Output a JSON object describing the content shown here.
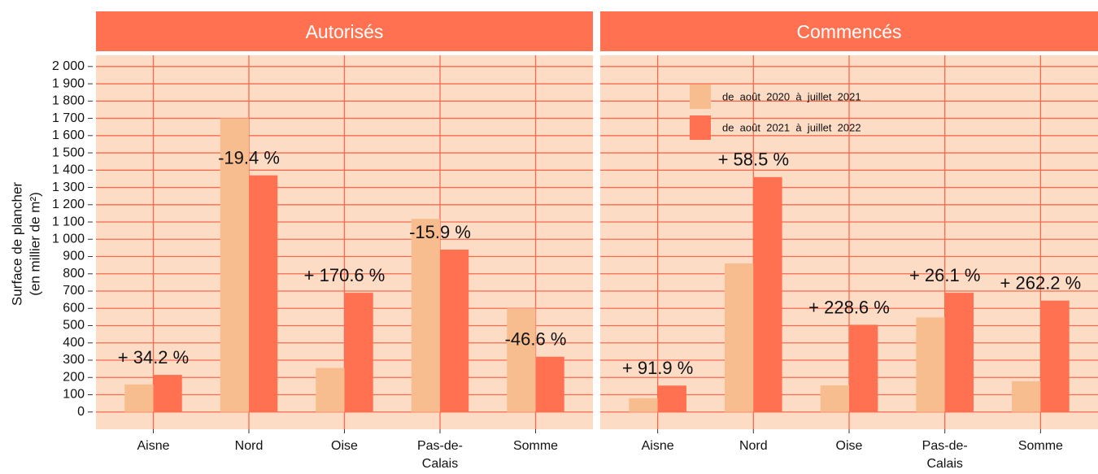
{
  "chart_data": {
    "type": "bar",
    "ylabel": [
      "Surface de plancher",
      "(en millier de m²)"
    ],
    "categories": [
      "Aisne",
      "Nord",
      "Oise",
      "Pas-de-Calais",
      "Somme"
    ],
    "legend": [
      {
        "name": "de  août  2020  à  juillet  2021",
        "color": "#f7bd8f"
      },
      {
        "name": "de  août  2021  à  juillet  2022",
        "color": "#ff7150"
      }
    ],
    "ylim": [
      -100,
      2065
    ],
    "yticks": [
      0,
      100,
      200,
      300,
      400,
      500,
      600,
      700,
      800,
      900,
      {
        "value": 1000,
        "label": "1 000"
      },
      {
        "value": 1100,
        "label": "1 100"
      },
      {
        "value": 1200,
        "label": "1 200"
      },
      {
        "value": 1300,
        "label": "1 300"
      },
      {
        "value": 1400,
        "label": "1 400"
      },
      {
        "value": 1500,
        "label": "1 500"
      },
      {
        "value": 1600,
        "label": "1 600"
      },
      {
        "value": 1700,
        "label": "1 700"
      },
      {
        "value": 1800,
        "label": "1 800"
      },
      {
        "value": 1900,
        "label": "1 900"
      },
      {
        "value": 2000,
        "label": "2 000"
      }
    ],
    "grid": true,
    "panels": [
      {
        "title": "Autorisés",
        "series": [
          {
            "values": [
              160,
              1700,
              255,
              1118,
              600
            ]
          },
          {
            "values": [
              215,
              1370,
              690,
              940,
              320
            ]
          }
        ],
        "annotations": [
          "+ 34.2 %",
          "-19.4 %",
          "+ 170.6 %",
          "-15.9 %",
          "-46.6 %"
        ]
      },
      {
        "title": "Commencés",
        "series": [
          {
            "values": [
              80,
              860,
              154,
              548,
              178
            ]
          },
          {
            "values": [
              153,
              1360,
              505,
              690,
              645
            ]
          }
        ],
        "annotations": [
          "+ 91.9 %",
          "+ 58.5 %",
          "+ 228.6 %",
          "+ 26.1 %",
          "+ 262.2 %"
        ]
      }
    ]
  }
}
